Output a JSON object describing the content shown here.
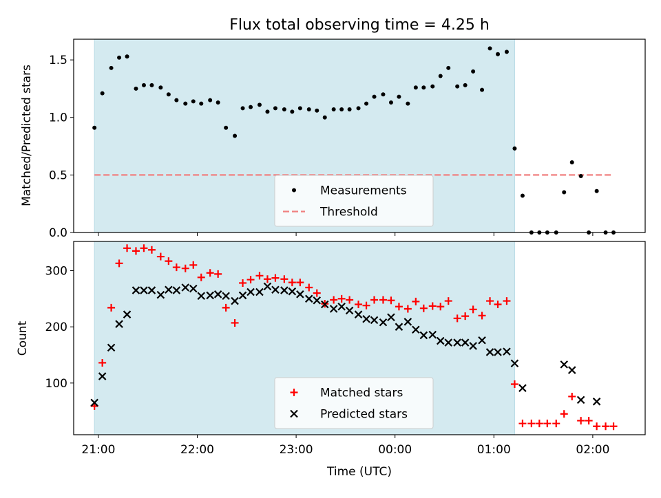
{
  "chart_data": {
    "title": "Flux total observing time = 4.25 h",
    "xlabel": "Time (UTC)",
    "x_ticks": [
      "21:00",
      "22:00",
      "23:00",
      "00:00",
      "01:00",
      "02:00"
    ],
    "x_tick_hours": [
      21,
      22,
      23,
      24,
      25,
      26
    ],
    "xlim_hours": [
      20.75,
      26.53
    ],
    "observing_window_hours": [
      20.96,
      25.21
    ],
    "shade_color": "#d4eaf0",
    "panels": [
      {
        "type": "scatter",
        "ylabel": "Matched/Predicted stars",
        "ylim": [
          0,
          1.68
        ],
        "y_ticks": [
          0.0,
          0.5,
          1.0,
          1.5
        ],
        "y_tick_labels": [
          "0.0",
          "0.5",
          "1.0",
          "1.5"
        ],
        "legend": "bottom-center",
        "threshold": {
          "name": "Threshold",
          "value": 0.5,
          "x_range": [
            20.96,
            26.21
          ],
          "color": "#f08080"
        },
        "series": [
          {
            "name": "Measurements",
            "marker": "dot",
            "color": "#000000",
            "x": [
              20.96,
              21.04,
              21.13,
              21.21,
              21.29,
              21.38,
              21.46,
              21.54,
              21.63,
              21.71,
              21.79,
              21.88,
              21.96,
              22.04,
              22.13,
              22.21,
              22.29,
              22.38,
              22.46,
              22.54,
              22.63,
              22.71,
              22.79,
              22.88,
              22.96,
              23.04,
              23.13,
              23.21,
              23.29,
              23.38,
              23.46,
              23.54,
              23.63,
              23.71,
              23.79,
              23.88,
              23.96,
              24.04,
              24.13,
              24.21,
              24.29,
              24.38,
              24.46,
              24.54,
              24.63,
              24.71,
              24.79,
              24.88,
              24.96,
              25.04,
              25.13,
              25.21,
              25.29,
              25.38,
              25.46,
              25.54,
              25.63,
              25.71,
              25.79,
              25.88,
              25.96,
              26.04,
              26.13,
              26.21
            ],
            "y": [
              0.91,
              1.21,
              1.43,
              1.52,
              1.53,
              1.25,
              1.28,
              1.28,
              1.26,
              1.2,
              1.15,
              1.12,
              1.14,
              1.12,
              1.15,
              1.13,
              0.91,
              0.84,
              1.08,
              1.09,
              1.11,
              1.05,
              1.08,
              1.07,
              1.05,
              1.08,
              1.07,
              1.06,
              1.0,
              1.07,
              1.07,
              1.07,
              1.08,
              1.12,
              1.18,
              1.2,
              1.13,
              1.18,
              1.12,
              1.26,
              1.26,
              1.27,
              1.36,
              1.43,
              1.27,
              1.28,
              1.4,
              1.24,
              1.6,
              1.55,
              1.57,
              0.73,
              0.32,
              0.0,
              0.0,
              0.0,
              0.0,
              0.35,
              0.61,
              0.49,
              0.0,
              0.36,
              0.0,
              0.0
            ]
          }
        ]
      },
      {
        "type": "scatter",
        "ylabel": "Count",
        "ylim": [
          8,
          352
        ],
        "y_ticks": [
          100,
          200,
          300
        ],
        "y_tick_labels": [
          "100",
          "200",
          "300"
        ],
        "legend": "bottom-center",
        "series": [
          {
            "name": "Matched stars",
            "marker": "plus",
            "color": "#ff0000",
            "x": [
              20.96,
              21.04,
              21.13,
              21.21,
              21.29,
              21.38,
              21.46,
              21.54,
              21.63,
              21.71,
              21.79,
              21.88,
              21.96,
              22.04,
              22.13,
              22.21,
              22.29,
              22.38,
              22.46,
              22.54,
              22.63,
              22.71,
              22.79,
              22.88,
              22.96,
              23.04,
              23.13,
              23.21,
              23.29,
              23.38,
              23.46,
              23.54,
              23.63,
              23.71,
              23.79,
              23.88,
              23.96,
              24.04,
              24.13,
              24.21,
              24.29,
              24.38,
              24.46,
              24.54,
              24.63,
              24.71,
              24.79,
              24.88,
              24.96,
              25.04,
              25.13,
              25.21,
              25.29,
              25.38,
              25.46,
              25.54,
              25.63,
              25.71,
              25.79,
              25.88,
              25.96,
              26.04,
              26.13,
              26.21
            ],
            "y": [
              59,
              136,
              234,
              313,
              340,
              335,
              340,
              337,
              325,
              317,
              306,
              304,
              310,
              288,
              296,
              294,
              234,
              207,
              278,
              284,
              291,
              285,
              287,
              285,
              279,
              279,
              270,
              260,
              241,
              248,
              250,
              248,
              240,
              238,
              248,
              248,
              247,
              236,
              232,
              245,
              233,
              237,
              236,
              246,
              215,
              219,
              231,
              220,
              246,
              240,
              246,
              98,
              28,
              28,
              28,
              28,
              28,
              45,
              76,
              33,
              33,
              23,
              23,
              23
            ]
          },
          {
            "name": "Predicted stars",
            "marker": "x",
            "color": "#000000",
            "x": [
              20.96,
              21.04,
              21.13,
              21.21,
              21.29,
              21.38,
              21.46,
              21.54,
              21.63,
              21.71,
              21.79,
              21.88,
              21.96,
              22.04,
              22.13,
              22.21,
              22.29,
              22.38,
              22.46,
              22.54,
              22.63,
              22.71,
              22.79,
              22.88,
              22.96,
              23.04,
              23.13,
              23.21,
              23.29,
              23.38,
              23.46,
              23.54,
              23.63,
              23.71,
              23.79,
              23.88,
              23.96,
              24.04,
              24.13,
              24.21,
              24.29,
              24.38,
              24.46,
              24.54,
              24.63,
              24.71,
              24.79,
              24.88,
              24.96,
              25.04,
              25.13,
              25.21,
              25.29,
              25.71,
              25.79,
              25.88,
              26.04
            ],
            "y": [
              65,
              112,
              163,
              205,
              222,
              265,
              265,
              265,
              257,
              266,
              265,
              270,
              268,
              255,
              256,
              258,
              255,
              246,
              256,
              262,
              262,
              272,
              266,
              265,
              263,
              258,
              250,
              247,
              240,
              232,
              236,
              229,
              222,
              214,
              212,
              208,
              217,
              200,
              209,
              195,
              185,
              186,
              175,
              172,
              172,
              172,
              166,
              176,
              155,
              155,
              156,
              135,
              91,
              133,
              123,
              70,
              67
            ]
          }
        ]
      }
    ]
  }
}
